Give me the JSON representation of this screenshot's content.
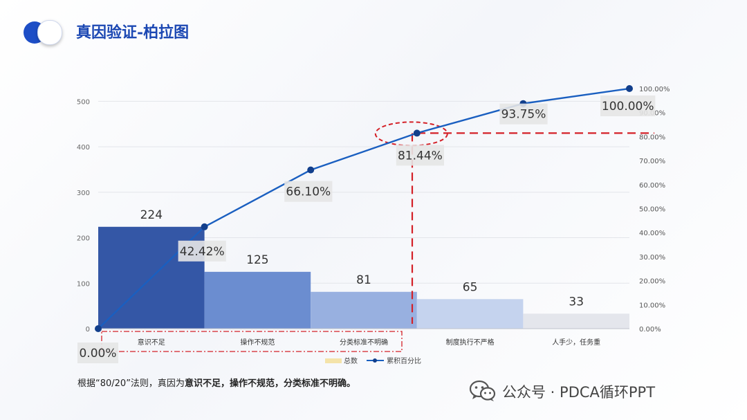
{
  "header": {
    "title": "真因验证-柏拉图"
  },
  "chart_data": {
    "type": "bar",
    "categories": [
      "意识不足",
      "操作不规范",
      "分类标准不明确",
      "制度执行不严格",
      "人手少，任务重"
    ],
    "series": [
      {
        "name": "总数",
        "type": "bar",
        "values": [
          224,
          125,
          81,
          65,
          33
        ],
        "colors": [
          "#3457a6",
          "#6b8dd0",
          "#98b0e0",
          "#c5d3ee",
          "#e4e6ec"
        ]
      },
      {
        "name": "累积百分比",
        "type": "line",
        "x": [
          0,
          1,
          2,
          3,
          4,
          5
        ],
        "values": [
          0,
          42.42,
          66.1,
          81.44,
          93.75,
          100.0
        ],
        "color": "#1a5fc0"
      }
    ],
    "bar_labels": [
      "224",
      "125",
      "81",
      "65",
      "33"
    ],
    "line_labels": [
      "0.00%",
      "42.42%",
      "66.10%",
      "81.44%",
      "93.75%",
      "100.00%"
    ],
    "y_left_ticks": [
      "0",
      "100",
      "200",
      "300",
      "400",
      "500"
    ],
    "y_left_range": [
      0,
      528
    ],
    "y_right_ticks": [
      "0.00%",
      "10.00%",
      "20.00%",
      "30.00%",
      "40.00%",
      "50.00%",
      "60.00%",
      "70.00%",
      "80.00%",
      "90.00%",
      "100.00%"
    ],
    "y_right_range": [
      0,
      100
    ],
    "legend": [
      "总数",
      "累积百分比"
    ],
    "legend_position": "bottom",
    "annotation": {
      "highlight_point": "81.44%",
      "highlight_categories": [
        "意识不足",
        "操作不规范",
        "分类标准不明确"
      ],
      "line_color": "#d42027"
    }
  },
  "footer": {
    "prefix": "根据“80/20”法则，真因为",
    "emphasis": "意识不足，操作不规范，分类标准不明确。"
  },
  "brand": {
    "text": "公众号 · PDCA循环PPT",
    "icon": "wechat-icon"
  }
}
